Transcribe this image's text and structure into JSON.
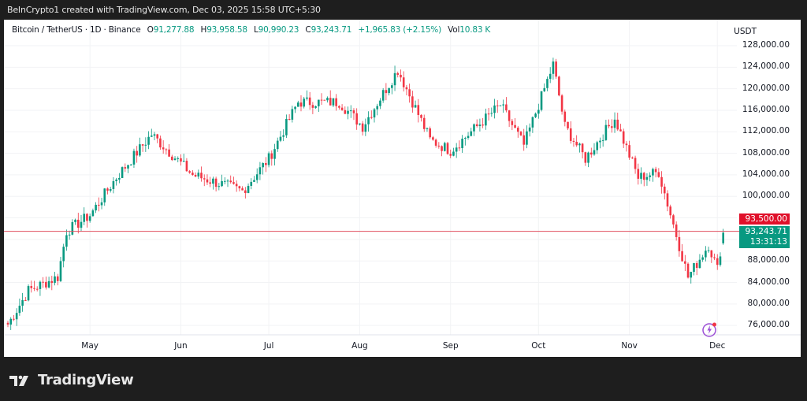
{
  "caption": "BeInCrypto1 created with TradingView.com, Dec 03, 2025 15:58 UTC+5:30",
  "legend": {
    "symbol": "Bitcoin / TetherUS · 1D · Binance",
    "o_label": "O",
    "o": "91,277.88",
    "h_label": "H",
    "h": "93,958.58",
    "l_label": "L",
    "l": "90,990.23",
    "c_label": "C",
    "c": "93,243.71",
    "change": "+1,965.83 (+2.15%)",
    "vol_label": "Vol",
    "vol": "10.83 K"
  },
  "axis": {
    "unit": "USDT",
    "y_ticks": [
      "128,000.00",
      "124,000.00",
      "120,000.00",
      "116,000.00",
      "112,000.00",
      "108,000.00",
      "104,000.00",
      "100,000.00",
      "88,000.00",
      "84,000.00",
      "80,000.00",
      "76,000.00"
    ],
    "x_ticks": [
      "May",
      "Jun",
      "Jul",
      "Aug",
      "Sep",
      "Oct",
      "Nov",
      "Dec"
    ]
  },
  "price_tags": {
    "alert": "93,500.00",
    "last": "93,243.71",
    "countdown": "13:31:13"
  },
  "colors": {
    "up": "#089981",
    "down": "#f23645",
    "alert": "#e0102a",
    "line": "#e05060"
  },
  "brand": {
    "name": "TradingView"
  },
  "chart_data": {
    "type": "candlestick",
    "title": "Bitcoin / TetherUS · 1D · Binance",
    "ylabel": "USDT",
    "ylim": [
      74000,
      129000
    ],
    "x_range": [
      "2025-04-03",
      "2025-12-03"
    ],
    "x_ticks": [
      "May",
      "Jun",
      "Jul",
      "Aug",
      "Sep",
      "Oct",
      "Nov",
      "Dec"
    ],
    "horizontal_line": 93500,
    "last_price": 93243.71,
    "ohlc_last": {
      "open": 91277.88,
      "high": 93958.58,
      "low": 90990.23,
      "close": 93243.71,
      "change": 1965.83,
      "change_pct": 2.15,
      "volume": "10.83K"
    },
    "approx_close_path": [
      {
        "date": "2025-04-05",
        "close": 78000
      },
      {
        "date": "2025-04-10",
        "close": 82500
      },
      {
        "date": "2025-04-20",
        "close": 85000
      },
      {
        "date": "2025-04-23",
        "close": 93500
      },
      {
        "date": "2025-05-01",
        "close": 96500
      },
      {
        "date": "2025-05-10",
        "close": 103500
      },
      {
        "date": "2025-05-22",
        "close": 111500
      },
      {
        "date": "2025-06-05",
        "close": 104000
      },
      {
        "date": "2025-06-22",
        "close": 101000
      },
      {
        "date": "2025-07-01",
        "close": 107000
      },
      {
        "date": "2025-07-11",
        "close": 117500
      },
      {
        "date": "2025-07-25",
        "close": 117500
      },
      {
        "date": "2025-08-02",
        "close": 113000
      },
      {
        "date": "2025-08-14",
        "close": 123500
      },
      {
        "date": "2025-08-25",
        "close": 110500
      },
      {
        "date": "2025-09-01",
        "close": 108500
      },
      {
        "date": "2025-09-18",
        "close": 117000
      },
      {
        "date": "2025-09-26",
        "close": 109500
      },
      {
        "date": "2025-10-06",
        "close": 124500
      },
      {
        "date": "2025-10-10",
        "close": 113000
      },
      {
        "date": "2025-10-17",
        "close": 107000
      },
      {
        "date": "2025-10-27",
        "close": 114500
      },
      {
        "date": "2025-11-04",
        "close": 103500
      },
      {
        "date": "2025-11-11",
        "close": 104500
      },
      {
        "date": "2025-11-21",
        "close": 85000
      },
      {
        "date": "2025-11-28",
        "close": 91000
      },
      {
        "date": "2025-12-01",
        "close": 86500
      },
      {
        "date": "2025-12-03",
        "close": 93243.71
      }
    ]
  }
}
